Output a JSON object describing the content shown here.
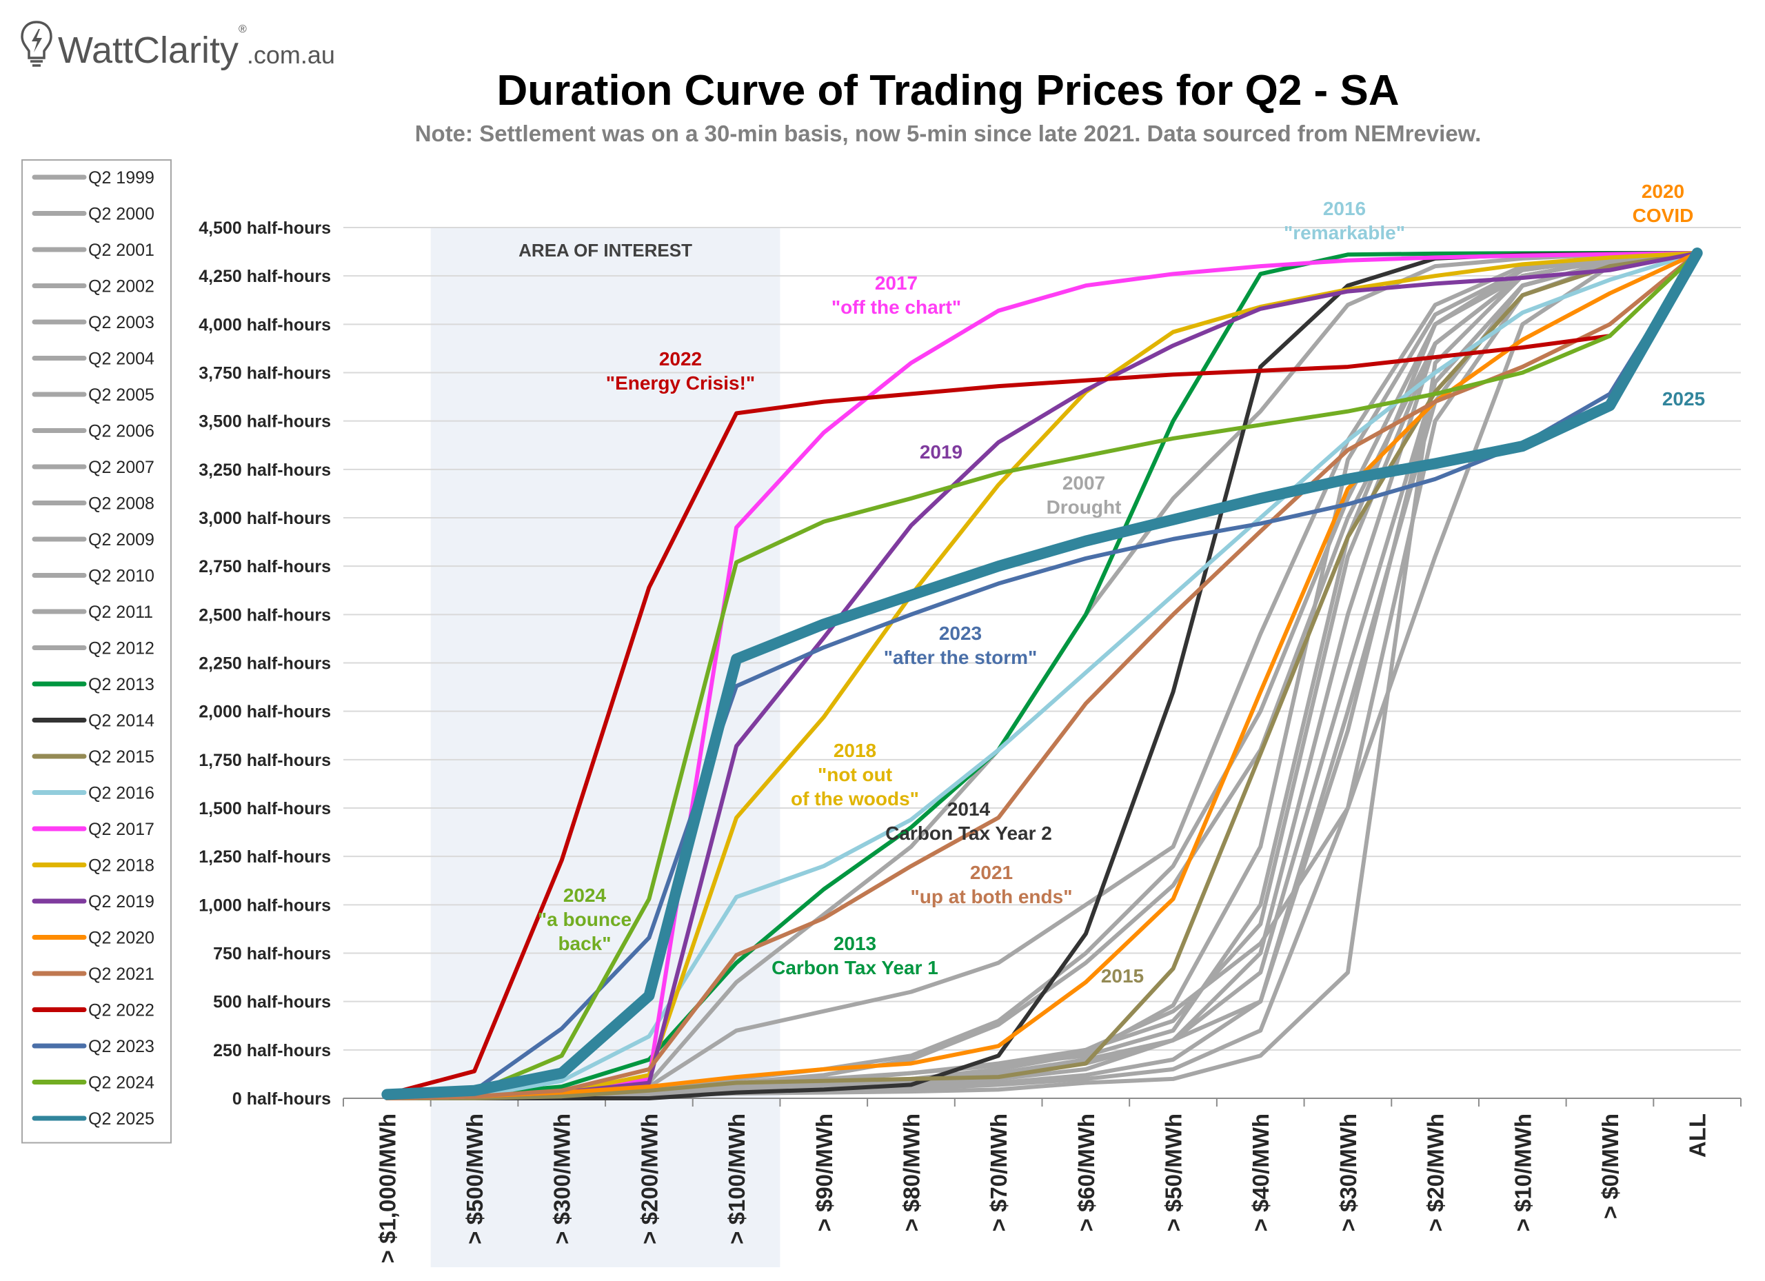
{
  "brand": {
    "name": "WattClarity",
    "reg": "®",
    "suffix": ".com.au"
  },
  "chart_data": {
    "type": "line",
    "title": "Duration Curve of Trading Prices for Q2 - SA",
    "subtitle": "Note: Settlement was on a 30-min basis, now 5-min since late 2021. Data sourced from NEMreview.",
    "categories": [
      "> $1,000/MWh",
      "> $500/MWh",
      "> $300/MWh",
      "> $200/MWh",
      "> $100/MWh",
      "> $90/MWh",
      "> $80/MWh",
      "> $70/MWh",
      "> $60/MWh",
      "> $50/MWh",
      "> $40/MWh",
      "> $30/MWh",
      "> $20/MWh",
      "> $10/MWh",
      "> $0/MWh",
      "ALL"
    ],
    "y_ticks": [
      "0 half-hours",
      "250 half-hours",
      "500 half-hours",
      "750 half-hours",
      "1,000 half-hours",
      "1,250 half-hours",
      "1,500 half-hours",
      "1,750 half-hours",
      "2,000 half-hours",
      "2,250 half-hours",
      "2,500 half-hours",
      "2,750 half-hours",
      "3,000 half-hours",
      "3,250 half-hours",
      "3,500 half-hours",
      "3,750 half-hours",
      "4,000 half-hours",
      "4,250 half-hours",
      "4,500 half-hours"
    ],
    "ylim": [
      0,
      4500
    ],
    "grid": true,
    "legend_position": "left",
    "area_label": "AREA OF INTEREST",
    "area_range": [
      1,
      4
    ],
    "series": [
      {
        "name": "Q2 1999",
        "color": "#a6a6a6",
        "width": 6,
        "values": [
          0,
          5,
          10,
          20,
          40,
          60,
          90,
          150,
          250,
          450,
          800,
          1500,
          2800,
          4000,
          4300,
          4368
        ]
      },
      {
        "name": "Q2 2000",
        "color": "#a6a6a6",
        "width": 6,
        "values": [
          0,
          5,
          10,
          15,
          25,
          30,
          35,
          45,
          80,
          100,
          220,
          650,
          3800,
          4250,
          4330,
          4368
        ]
      },
      {
        "name": "Q2 2001",
        "color": "#a6a6a6",
        "width": 6,
        "values": [
          0,
          5,
          10,
          20,
          40,
          50,
          60,
          80,
          120,
          200,
          500,
          2000,
          3600,
          4200,
          4320,
          4368
        ]
      },
      {
        "name": "Q2 2002",
        "color": "#a6a6a6",
        "width": 6,
        "values": [
          0,
          5,
          10,
          15,
          30,
          40,
          50,
          70,
          100,
          150,
          350,
          1500,
          3500,
          4150,
          4310,
          4368
        ]
      },
      {
        "name": "Q2 2003",
        "color": "#a6a6a6",
        "width": 6,
        "values": [
          0,
          5,
          10,
          20,
          50,
          60,
          80,
          100,
          150,
          300,
          750,
          2500,
          3900,
          4250,
          4330,
          4368
        ]
      },
      {
        "name": "Q2 2004",
        "color": "#a6a6a6",
        "width": 6,
        "values": [
          0,
          5,
          10,
          20,
          60,
          90,
          130,
          180,
          250,
          400,
          900,
          2800,
          3900,
          4250,
          4330,
          4368
        ]
      },
      {
        "name": "Q2 2005",
        "color": "#a6a6a6",
        "width": 6,
        "values": [
          0,
          5,
          10,
          20,
          50,
          70,
          100,
          130,
          180,
          300,
          650,
          2200,
          3700,
          4200,
          4320,
          4368
        ]
      },
      {
        "name": "Q2 2006",
        "color": "#a6a6a6",
        "width": 6,
        "values": [
          0,
          5,
          15,
          40,
          80,
          100,
          130,
          170,
          220,
          350,
          1000,
          2900,
          4000,
          4250,
          4330,
          4368
        ]
      },
      {
        "name": "Q2 2007",
        "color": "#a6a6a6",
        "width": 6,
        "values": [
          0,
          10,
          20,
          60,
          350,
          450,
          550,
          700,
          1000,
          1300,
          2400,
          3400,
          4100,
          4300,
          4340,
          4368
        ]
      },
      {
        "name": "Q2 2008",
        "color": "#a6a6a6",
        "width": 6,
        "values": [
          0,
          10,
          20,
          50,
          100,
          150,
          220,
          400,
          750,
          1200,
          2000,
          3100,
          4000,
          4280,
          4340,
          4368
        ]
      },
      {
        "name": "Q2 2009",
        "color": "#a6a6a6",
        "width": 6,
        "values": [
          0,
          5,
          10,
          20,
          50,
          70,
          100,
          150,
          230,
          480,
          1300,
          3300,
          4050,
          4280,
          4340,
          4368
        ]
      },
      {
        "name": "Q2 2010",
        "color": "#a6a6a6",
        "width": 6,
        "values": [
          0,
          5,
          10,
          30,
          80,
          120,
          200,
          380,
          700,
          1100,
          1800,
          3000,
          3900,
          4250,
          4330,
          4368
        ]
      },
      {
        "name": "Q2 2011",
        "color": "#a6a6a6",
        "width": 6,
        "values": [
          0,
          5,
          10,
          20,
          40,
          60,
          90,
          130,
          200,
          300,
          500,
          1900,
          3700,
          4200,
          4320,
          4368
        ]
      },
      {
        "name": "Q2 2012",
        "color": "#a6a6a6",
        "width": 6,
        "values": [
          0,
          5,
          20,
          80,
          600,
          950,
          1300,
          1800,
          2500,
          3100,
          3550,
          4100,
          4300,
          4340,
          4360,
          4368
        ]
      },
      {
        "name": "Q2 2013",
        "color": "#009640",
        "width": 6,
        "values": [
          0,
          20,
          60,
          200,
          700,
          1080,
          1400,
          1800,
          2500,
          3500,
          4260,
          4360,
          4365,
          4367,
          4368,
          4368
        ]
      },
      {
        "name": "Q2 2014",
        "color": "#333333",
        "width": 6,
        "values": [
          0,
          0,
          0,
          0,
          30,
          45,
          70,
          220,
          850,
          2100,
          3780,
          4200,
          4340,
          4360,
          4365,
          4368
        ]
      },
      {
        "name": "Q2 2015",
        "color": "#948a54",
        "width": 6,
        "values": [
          0,
          0,
          10,
          40,
          80,
          90,
          100,
          110,
          180,
          670,
          1780,
          2900,
          3650,
          4150,
          4300,
          4368
        ]
      },
      {
        "name": "Q2 2016",
        "color": "#92cddc",
        "width": 6,
        "values": [
          0,
          10,
          90,
          320,
          1040,
          1200,
          1440,
          1800,
          2200,
          2600,
          3000,
          3400,
          3750,
          4060,
          4230,
          4368
        ]
      },
      {
        "name": "Q2 2017",
        "color": "#ff3df5",
        "width": 6,
        "values": [
          0,
          10,
          30,
          100,
          2950,
          3440,
          3800,
          4070,
          4200,
          4260,
          4300,
          4330,
          4345,
          4355,
          4362,
          4368
        ]
      },
      {
        "name": "Q2 2018",
        "color": "#e0b400",
        "width": 6,
        "values": [
          0,
          10,
          30,
          120,
          1450,
          1970,
          2600,
          3170,
          3650,
          3960,
          4090,
          4180,
          4250,
          4310,
          4345,
          4368
        ]
      },
      {
        "name": "Q2 2019",
        "color": "#7f3b9e",
        "width": 6,
        "values": [
          0,
          10,
          30,
          80,
          1820,
          2380,
          2960,
          3390,
          3660,
          3890,
          4080,
          4170,
          4210,
          4240,
          4280,
          4368
        ]
      },
      {
        "name": "Q2 2020",
        "color": "#ff8c00",
        "width": 6,
        "values": [
          0,
          10,
          30,
          60,
          110,
          150,
          180,
          270,
          600,
          1030,
          2100,
          3150,
          3600,
          3920,
          4160,
          4368
        ]
      },
      {
        "name": "Q2 2021",
        "color": "#c07850",
        "width": 6,
        "values": [
          0,
          10,
          40,
          150,
          740,
          930,
          1200,
          1450,
          2040,
          2500,
          2930,
          3350,
          3600,
          3780,
          4000,
          4368
        ]
      },
      {
        "name": "Q2 2022",
        "color": "#c00000",
        "width": 6,
        "values": [
          20,
          140,
          1230,
          2640,
          3540,
          3600,
          3640,
          3680,
          3710,
          3740,
          3760,
          3780,
          3830,
          3880,
          3940,
          null
        ]
      },
      {
        "name": "Q2 2023",
        "color": "#4a6fa8",
        "width": 6,
        "values": [
          20,
          40,
          360,
          830,
          2130,
          2330,
          2500,
          2660,
          2790,
          2890,
          2970,
          3070,
          3200,
          3380,
          3640,
          4368
        ]
      },
      {
        "name": "Q2 2024",
        "color": "#72ad22",
        "width": 6,
        "values": [
          20,
          30,
          220,
          1030,
          2770,
          2980,
          3100,
          3230,
          3320,
          3410,
          3480,
          3550,
          3640,
          3750,
          3940,
          4368
        ]
      },
      {
        "name": "Q2 2025",
        "color": "#31859c",
        "width": 16,
        "values": [
          20,
          40,
          130,
          530,
          2270,
          2450,
          2600,
          2750,
          2880,
          2990,
          3100,
          3200,
          3280,
          3370,
          3580,
          4368
        ]
      }
    ],
    "annotations": [
      {
        "lines": [
          "2022",
          "\"Energy Crisis!\""
        ],
        "color": "#c00000"
      },
      {
        "lines": [
          "2017",
          "\"off the chart\""
        ],
        "color": "#ff3df5"
      },
      {
        "lines": [
          "2019"
        ],
        "color": "#7f3b9e"
      },
      {
        "lines": [
          "2007",
          "Drought"
        ],
        "color": "#a6a6a6"
      },
      {
        "lines": [
          "2016",
          "\"remarkable\""
        ],
        "color": "#92cddc"
      },
      {
        "lines": [
          "2020",
          "COVID"
        ],
        "color": "#ff8c00"
      },
      {
        "lines": [
          "2025"
        ],
        "color": "#31859c"
      },
      {
        "lines": [
          "2023",
          "\"after the storm\""
        ],
        "color": "#4a6fa8"
      },
      {
        "lines": [
          "2018",
          "\"not out",
          "of the woods\""
        ],
        "color": "#e0b400"
      },
      {
        "lines": [
          "2014",
          "Carbon Tax Year 2"
        ],
        "color": "#333333"
      },
      {
        "lines": [
          "2021",
          "\"up at both ends\""
        ],
        "color": "#c07850"
      },
      {
        "lines": [
          "2024",
          "\"a bounce",
          "back\""
        ],
        "color": "#72ad22"
      },
      {
        "lines": [
          "2013",
          "Carbon Tax Year 1"
        ],
        "color": "#009640"
      },
      {
        "lines": [
          "2015"
        ],
        "color": "#948a54"
      }
    ]
  }
}
